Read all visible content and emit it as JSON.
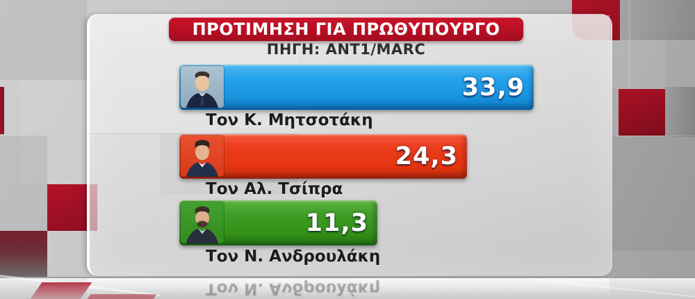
{
  "header": {
    "title": "ΠΡΟΤΙΜΗΣΗ ΓΙΑ ΠΡΩΘΥΠΟΥΡΓΟ",
    "source": "ΠΗΓΗ: ANT1/MARC"
  },
  "chart_data": {
    "type": "bar",
    "orientation": "horizontal",
    "title": "ΠΡΟΤΙΜΗΣΗ ΓΙΑ ΠΡΩΘΥΠΟΥΡΓΟ",
    "source": "ΠΗΓΗ: ANT1/MARC",
    "xlim": [
      0,
      40
    ],
    "categories": [
      "Τον Κ. Μητσοτάκη",
      "Τον Αλ. Τσίπρα",
      "Τον Ν. Ανδρουλάκη"
    ],
    "values": [
      33.9,
      24.3,
      11.3
    ],
    "bars": [
      {
        "label": "Τον Κ. Μητσοτάκη",
        "value": 33.9,
        "value_label": "33,9",
        "color": "#1E9BE5",
        "photo": "portrait-mitsotakis"
      },
      {
        "label": "Τον Αλ. Τσίπρα",
        "value": 24.3,
        "value_label": "24,3",
        "color": "#E93A17",
        "photo": "portrait-tsipras"
      },
      {
        "label": "Τον Ν. Ανδρουλάκη",
        "value": 11.3,
        "value_label": "11,3",
        "color": "#3B9C23",
        "photo": "portrait-androulakis"
      }
    ]
  },
  "reflection": {
    "text": "Τον Ν. Ανδρουλάκη"
  },
  "colors": {
    "accent_red": "#B80F24",
    "bar_blue": "#1E9BE5",
    "bar_red": "#E93A17",
    "bar_green": "#3B9C23",
    "label_text": "#1B1B1B",
    "value_text": "#FFFFFF"
  }
}
